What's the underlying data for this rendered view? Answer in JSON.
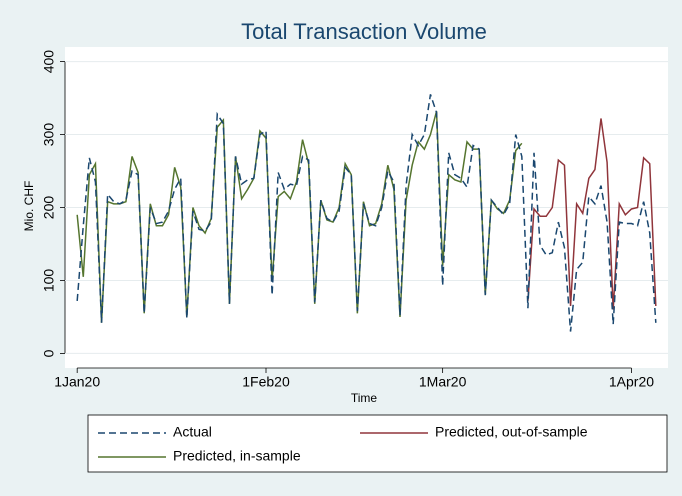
{
  "chart_data": {
    "type": "line",
    "title": "Total Transaction Volume",
    "x_label": "Time",
    "y_label": "Mio. CHF",
    "x": [
      "2020-01-01",
      "2020-01-02",
      "2020-01-03",
      "2020-01-04",
      "2020-01-05",
      "2020-01-06",
      "2020-01-07",
      "2020-01-08",
      "2020-01-09",
      "2020-01-10",
      "2020-01-11",
      "2020-01-12",
      "2020-01-13",
      "2020-01-14",
      "2020-01-15",
      "2020-01-16",
      "2020-01-17",
      "2020-01-18",
      "2020-01-19",
      "2020-01-20",
      "2020-01-21",
      "2020-01-22",
      "2020-01-23",
      "2020-01-24",
      "2020-01-25",
      "2020-01-26",
      "2020-01-27",
      "2020-01-28",
      "2020-01-29",
      "2020-01-30",
      "2020-01-31",
      "2020-02-01",
      "2020-02-02",
      "2020-02-03",
      "2020-02-04",
      "2020-02-05",
      "2020-02-06",
      "2020-02-07",
      "2020-02-08",
      "2020-02-09",
      "2020-02-10",
      "2020-02-11",
      "2020-02-12",
      "2020-02-13",
      "2020-02-14",
      "2020-02-15",
      "2020-02-16",
      "2020-02-17",
      "2020-02-18",
      "2020-02-19",
      "2020-02-20",
      "2020-02-21",
      "2020-02-22",
      "2020-02-23",
      "2020-02-24",
      "2020-02-25",
      "2020-02-26",
      "2020-02-27",
      "2020-02-28",
      "2020-02-29",
      "2020-03-01",
      "2020-03-02",
      "2020-03-03",
      "2020-03-04",
      "2020-03-05",
      "2020-03-06",
      "2020-03-07",
      "2020-03-08",
      "2020-03-09",
      "2020-03-10",
      "2020-03-11",
      "2020-03-12",
      "2020-03-13",
      "2020-03-14",
      "2020-03-15",
      "2020-03-16",
      "2020-03-17",
      "2020-03-18",
      "2020-03-19",
      "2020-03-20",
      "2020-03-21",
      "2020-03-22",
      "2020-03-23",
      "2020-03-24",
      "2020-03-25",
      "2020-03-26",
      "2020-03-27",
      "2020-03-28",
      "2020-03-29",
      "2020-03-30",
      "2020-03-31",
      "2020-04-01",
      "2020-04-02",
      "2020-04-03",
      "2020-04-04",
      "2020-04-05"
    ],
    "series": [
      {
        "name": "Actual",
        "color": "#1a476f",
        "dash": "dashed",
        "values": [
          72,
          175,
          268,
          235,
          42,
          218,
          208,
          205,
          210,
          250,
          245,
          55,
          200,
          178,
          180,
          195,
          225,
          240,
          48,
          195,
          170,
          168,
          180,
          328,
          315,
          68,
          270,
          232,
          238,
          240,
          300,
          305,
          80,
          248,
          225,
          232,
          230,
          270,
          265,
          70,
          210,
          185,
          180,
          195,
          255,
          245,
          58,
          205,
          178,
          175,
          200,
          250,
          235,
          52,
          230,
          300,
          285,
          300,
          355,
          330,
          93,
          275,
          245,
          240,
          228,
          285,
          280,
          80,
          210,
          200,
          190,
          205,
          300,
          270,
          62,
          275,
          148,
          135,
          138,
          180,
          145,
          30,
          115,
          125,
          215,
          205,
          230,
          180,
          40,
          180,
          178,
          178,
          175,
          208,
          165,
          42
        ]
      },
      {
        "name": "Predicted, in-sample",
        "color": "#55752f",
        "dash": "solid",
        "values": [
          190,
          105,
          245,
          260,
          42,
          208,
          205,
          205,
          208,
          270,
          248,
          55,
          205,
          175,
          175,
          190,
          255,
          228,
          50,
          200,
          175,
          165,
          185,
          310,
          320,
          68,
          270,
          212,
          225,
          240,
          305,
          295,
          100,
          215,
          222,
          212,
          235,
          293,
          260,
          68,
          210,
          183,
          180,
          200,
          260,
          245,
          55,
          208,
          175,
          178,
          205,
          258,
          225,
          50,
          210,
          258,
          290,
          280,
          300,
          332,
          120,
          245,
          238,
          235,
          290,
          280,
          280,
          80,
          210,
          198,
          192,
          210,
          278,
          288,
          null,
          null,
          null,
          null,
          null,
          null,
          null,
          null,
          null,
          null,
          null,
          null,
          null,
          null,
          null,
          null,
          null,
          null,
          null,
          null,
          null,
          null
        ]
      },
      {
        "name": "Predicted, out-of-sample",
        "color": "#90353b",
        "dash": "solid",
        "values": [
          null,
          null,
          null,
          null,
          null,
          null,
          null,
          null,
          null,
          null,
          null,
          null,
          null,
          null,
          null,
          null,
          null,
          null,
          null,
          null,
          null,
          null,
          null,
          null,
          null,
          null,
          null,
          null,
          null,
          null,
          null,
          null,
          null,
          null,
          null,
          null,
          null,
          null,
          null,
          null,
          null,
          null,
          null,
          null,
          null,
          null,
          null,
          null,
          null,
          null,
          null,
          null,
          null,
          null,
          null,
          null,
          null,
          null,
          null,
          null,
          null,
          null,
          null,
          null,
          null,
          null,
          null,
          null,
          null,
          null,
          null,
          null,
          null,
          null,
          72,
          198,
          188,
          188,
          200,
          265,
          258,
          65,
          205,
          192,
          240,
          252,
          322,
          262,
          60,
          205,
          190,
          198,
          200,
          268,
          260,
          65
        ]
      }
    ],
    "xlim": [
      "2019-12-30",
      "2020-04-07"
    ],
    "xticks": [
      {
        "value": "2020-01-01",
        "label": "1Jan20"
      },
      {
        "value": "2020-02-01",
        "label": "1Feb20"
      },
      {
        "value": "2020-03-01",
        "label": "1Mar20"
      },
      {
        "value": "2020-04-01",
        "label": "1Apr20"
      }
    ],
    "ylim": [
      -20,
      420
    ],
    "yticks": [
      0,
      100,
      200,
      300,
      400
    ],
    "grid": true,
    "legend": "bottom"
  }
}
